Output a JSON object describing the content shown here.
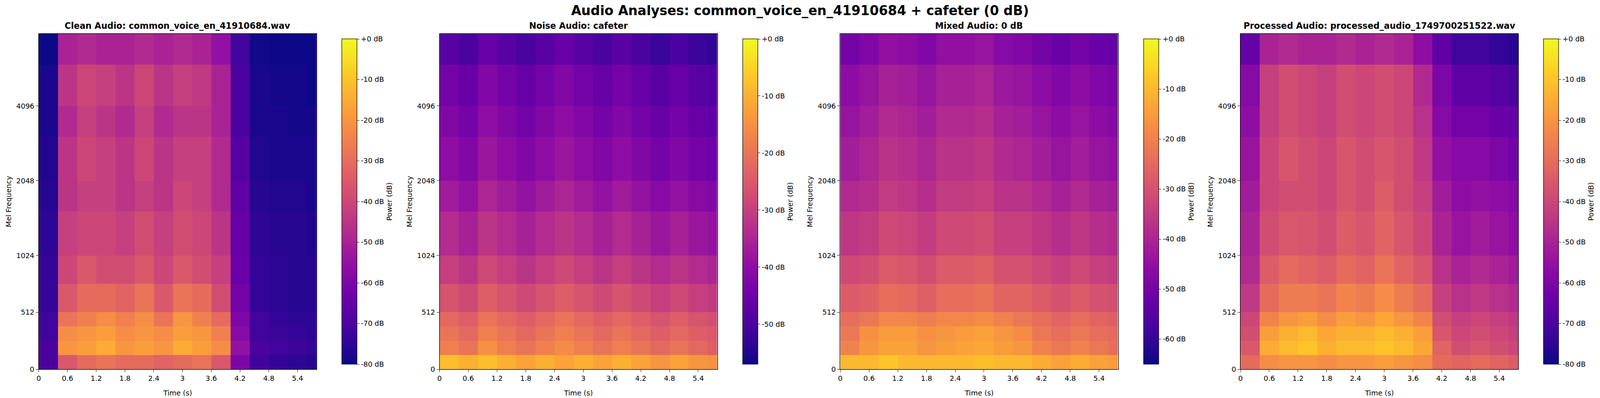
{
  "title": "Audio Analyses: common_voice_en_41910684 + cafeter (0 dB)",
  "chart_data": [
    {
      "type": "heatmap",
      "title": "Clean Audio: common_voice_en_41910684.wav",
      "x_label": "Time (s)",
      "y_label": "Mel Frequency",
      "x_edges": [
        0,
        0.4,
        0.8,
        1.2,
        1.6,
        2.0,
        2.4,
        2.8,
        3.2,
        3.6,
        4.0,
        4.4,
        4.8,
        5.2,
        5.6,
        5.8
      ],
      "y_edges": [
        0,
        128,
        256,
        384,
        512,
        768,
        1024,
        1536,
        2048,
        3072,
        4096,
        6000,
        8000
      ],
      "xlim": [
        0,
        5.8
      ],
      "ylim": [
        0,
        8000
      ],
      "xticks": [
        0,
        0.6,
        1.2,
        1.8,
        2.4,
        3,
        3.6,
        4.2,
        4.8,
        5.4
      ],
      "yticks": [
        0,
        512,
        1024,
        2048,
        4096
      ],
      "colorbar": {
        "label": "Power (dB)",
        "range": [
          -80,
          0
        ],
        "ticks": [
          {
            "value": 0,
            "label": "+0 dB"
          },
          {
            "value": -10,
            "label": "-10 dB"
          },
          {
            "value": -20,
            "label": "-20 dB"
          },
          {
            "value": -30,
            "label": "-30 dB"
          },
          {
            "value": -40,
            "label": "-40 dB"
          },
          {
            "value": -50,
            "label": "-50 dB"
          },
          {
            "value": -60,
            "label": "-60 dB"
          },
          {
            "value": -70,
            "label": "-70 dB"
          },
          {
            "value": -80,
            "label": "-80 dB"
          }
        ]
      },
      "cells": [
        [
          -70,
          -35,
          -30,
          -28,
          -30,
          -30,
          -32,
          -30,
          -28,
          -35,
          -60,
          -72,
          -74,
          -75,
          -76
        ],
        [
          -70,
          -20,
          -18,
          -15,
          -20,
          -18,
          -20,
          -15,
          -18,
          -22,
          -55,
          -70,
          -72,
          -73,
          -74
        ],
        [
          -72,
          -22,
          -20,
          -18,
          -22,
          -20,
          -22,
          -18,
          -20,
          -25,
          -58,
          -72,
          -73,
          -74,
          -75
        ],
        [
          -72,
          -28,
          -25,
          -22,
          -25,
          -22,
          -28,
          -20,
          -25,
          -30,
          -60,
          -72,
          -74,
          -75,
          -75
        ],
        [
          -74,
          -35,
          -30,
          -30,
          -32,
          -28,
          -35,
          -28,
          -30,
          -38,
          -62,
          -74,
          -75,
          -76,
          -76
        ],
        [
          -74,
          -40,
          -35,
          -38,
          -38,
          -35,
          -40,
          -35,
          -38,
          -42,
          -64,
          -74,
          -75,
          -76,
          -76
        ],
        [
          -75,
          -42,
          -40,
          -40,
          -42,
          -38,
          -42,
          -38,
          -40,
          -45,
          -65,
          -75,
          -76,
          -76,
          -77
        ],
        [
          -76,
          -45,
          -42,
          -42,
          -45,
          -42,
          -45,
          -40,
          -42,
          -48,
          -66,
          -76,
          -77,
          -77,
          -78
        ],
        [
          -77,
          -45,
          -40,
          -42,
          -45,
          -40,
          -45,
          -42,
          -42,
          -48,
          -68,
          -77,
          -78,
          -78,
          -78
        ],
        [
          -78,
          -48,
          -42,
          -45,
          -48,
          -42,
          -48,
          -45,
          -45,
          -50,
          -70,
          -78,
          -78,
          -79,
          -79
        ],
        [
          -78,
          -45,
          -40,
          -42,
          -45,
          -40,
          -45,
          -42,
          -44,
          -50,
          -70,
          -78,
          -79,
          -79,
          -80
        ],
        [
          -80,
          -50,
          -48,
          -50,
          -50,
          -48,
          -50,
          -48,
          -50,
          -55,
          -72,
          -79,
          -80,
          -80,
          -80
        ]
      ]
    },
    {
      "type": "heatmap",
      "title": "Noise Audio: cafeter",
      "x_label": "Time (s)",
      "y_label": "Mel Frequency",
      "x_edges": [
        0,
        0.4,
        0.8,
        1.2,
        1.6,
        2.0,
        2.4,
        2.8,
        3.2,
        3.6,
        4.0,
        4.4,
        4.8,
        5.2,
        5.6,
        5.8
      ],
      "y_edges": [
        0,
        128,
        256,
        384,
        512,
        768,
        1024,
        1536,
        2048,
        3072,
        4096,
        6000,
        8000
      ],
      "xlim": [
        0,
        5.8
      ],
      "ylim": [
        0,
        8000
      ],
      "xticks": [
        0,
        0.6,
        1.2,
        1.8,
        2.4,
        3,
        3.6,
        4.2,
        4.8,
        5.4
      ],
      "yticks": [
        0,
        512,
        1024,
        2048,
        4096
      ],
      "colorbar": {
        "label": "Power (dB)",
        "range": [
          -57,
          0
        ],
        "ticks": [
          {
            "value": 0,
            "label": "+0 dB"
          },
          {
            "value": -10,
            "label": "-10 dB"
          },
          {
            "value": -20,
            "label": "-20 dB"
          },
          {
            "value": -30,
            "label": "-30 dB"
          },
          {
            "value": -40,
            "label": "-40 dB"
          },
          {
            "value": -50,
            "label": "-50 dB"
          }
        ]
      },
      "cells": [
        [
          -8,
          -10,
          -8,
          -10,
          -12,
          -10,
          -12,
          -10,
          -12,
          -10,
          -12,
          -14,
          -12,
          -14,
          -15
        ],
        [
          -18,
          -20,
          -15,
          -18,
          -20,
          -18,
          -16,
          -18,
          -20,
          -18,
          -20,
          -22,
          -20,
          -22,
          -24
        ],
        [
          -20,
          -22,
          -18,
          -20,
          -22,
          -20,
          -18,
          -20,
          -22,
          -20,
          -22,
          -24,
          -22,
          -24,
          -25
        ],
        [
          -22,
          -24,
          -20,
          -22,
          -24,
          -22,
          -20,
          -22,
          -24,
          -22,
          -24,
          -26,
          -24,
          -26,
          -27
        ],
        [
          -26,
          -28,
          -24,
          -26,
          -28,
          -26,
          -24,
          -26,
          -28,
          -26,
          -28,
          -30,
          -28,
          -30,
          -31
        ],
        [
          -30,
          -32,
          -28,
          -30,
          -32,
          -30,
          -28,
          -30,
          -32,
          -30,
          -32,
          -34,
          -32,
          -34,
          -35
        ],
        [
          -34,
          -36,
          -32,
          -34,
          -36,
          -34,
          -32,
          -34,
          -36,
          -34,
          -36,
          -38,
          -36,
          -38,
          -39
        ],
        [
          -37,
          -39,
          -35,
          -37,
          -39,
          -37,
          -35,
          -37,
          -39,
          -37,
          -39,
          -41,
          -39,
          -41,
          -42
        ],
        [
          -40,
          -42,
          -38,
          -40,
          -42,
          -40,
          -38,
          -40,
          -42,
          -40,
          -42,
          -44,
          -42,
          -44,
          -45
        ],
        [
          -42,
          -44,
          -40,
          -42,
          -44,
          -42,
          -40,
          -42,
          -44,
          -42,
          -44,
          -46,
          -44,
          -46,
          -47
        ],
        [
          -44,
          -46,
          -42,
          -44,
          -46,
          -44,
          -42,
          -44,
          -46,
          -44,
          -46,
          -48,
          -46,
          -48,
          -49
        ],
        [
          -48,
          -50,
          -46,
          -48,
          -50,
          -48,
          -46,
          -48,
          -50,
          -48,
          -50,
          -52,
          -50,
          -52,
          -53
        ]
      ]
    },
    {
      "type": "heatmap",
      "title": "Mixed Audio: 0 dB",
      "x_label": "Time (s)",
      "y_label": "Mel Frequency",
      "x_edges": [
        0,
        0.4,
        0.8,
        1.2,
        1.6,
        2.0,
        2.4,
        2.8,
        3.2,
        3.6,
        4.0,
        4.4,
        4.8,
        5.2,
        5.6,
        5.8
      ],
      "y_edges": [
        0,
        128,
        256,
        384,
        512,
        768,
        1024,
        1536,
        2048,
        3072,
        4096,
        6000,
        8000
      ],
      "xlim": [
        0,
        5.8
      ],
      "ylim": [
        0,
        8000
      ],
      "xticks": [
        0,
        0.6,
        1.2,
        1.8,
        2.4,
        3,
        3.6,
        4.2,
        4.8,
        5.4
      ],
      "yticks": [
        0,
        512,
        1024,
        2048,
        4096
      ],
      "colorbar": {
        "label": "Power (dB)",
        "range": [
          -65,
          0
        ],
        "ticks": [
          {
            "value": 0,
            "label": "+0 dB"
          },
          {
            "value": -10,
            "label": "-10 dB"
          },
          {
            "value": -20,
            "label": "-20 dB"
          },
          {
            "value": -30,
            "label": "-30 dB"
          },
          {
            "value": -40,
            "label": "-40 dB"
          },
          {
            "value": -50,
            "label": "-50 dB"
          },
          {
            "value": -60,
            "label": "-60 dB"
          }
        ]
      },
      "cells": [
        [
          -10,
          -10,
          -8,
          -10,
          -10,
          -10,
          -10,
          -9,
          -10,
          -10,
          -12,
          -14,
          -12,
          -14,
          -15
        ],
        [
          -20,
          -16,
          -14,
          -14,
          -16,
          -15,
          -14,
          -13,
          -15,
          -16,
          -20,
          -22,
          -20,
          -22,
          -24
        ],
        [
          -22,
          -17,
          -15,
          -15,
          -17,
          -16,
          -15,
          -14,
          -16,
          -18,
          -22,
          -24,
          -22,
          -24,
          -25
        ],
        [
          -24,
          -22,
          -19,
          -19,
          -21,
          -19,
          -19,
          -18,
          -20,
          -22,
          -24,
          -26,
          -24,
          -26,
          -27
        ],
        [
          -28,
          -27,
          -24,
          -25,
          -27,
          -24,
          -24,
          -23,
          -26,
          -26,
          -28,
          -30,
          -28,
          -30,
          -31
        ],
        [
          -32,
          -31,
          -28,
          -29,
          -31,
          -28,
          -28,
          -27,
          -30,
          -30,
          -32,
          -34,
          -32,
          -34,
          -35
        ],
        [
          -36,
          -35,
          -32,
          -33,
          -35,
          -32,
          -32,
          -31,
          -34,
          -34,
          -36,
          -38,
          -36,
          -38,
          -39
        ],
        [
          -39,
          -38,
          -35,
          -36,
          -38,
          -35,
          -35,
          -34,
          -37,
          -37,
          -39,
          -41,
          -39,
          -41,
          -42
        ],
        [
          -42,
          -40,
          -37,
          -38,
          -40,
          -37,
          -37,
          -36,
          -39,
          -40,
          -42,
          -44,
          -42,
          -44,
          -45
        ],
        [
          -44,
          -42,
          -39,
          -40,
          -42,
          -39,
          -39,
          -38,
          -41,
          -42,
          -44,
          -46,
          -44,
          -46,
          -47
        ],
        [
          -46,
          -44,
          -41,
          -42,
          -44,
          -41,
          -41,
          -40,
          -43,
          -44,
          -46,
          -48,
          -46,
          -48,
          -49
        ],
        [
          -50,
          -48,
          -45,
          -46,
          -48,
          -45,
          -45,
          -44,
          -47,
          -48,
          -50,
          -52,
          -50,
          -52,
          -53
        ]
      ]
    },
    {
      "type": "heatmap",
      "title": "Processed Audio: processed_audio_1749700251522.wav",
      "x_label": "Time (s)",
      "y_label": "Mel Frequency",
      "x_edges": [
        0,
        0.4,
        0.8,
        1.2,
        1.6,
        2.0,
        2.4,
        2.8,
        3.2,
        3.6,
        4.0,
        4.4,
        4.8,
        5.2,
        5.6,
        5.8
      ],
      "y_edges": [
        0,
        128,
        256,
        384,
        512,
        768,
        1024,
        1536,
        2048,
        3072,
        4096,
        6000,
        8000
      ],
      "xlim": [
        0,
        5.8
      ],
      "ylim": [
        0,
        8000
      ],
      "xticks": [
        0,
        0.6,
        1.2,
        1.8,
        2.4,
        3,
        3.6,
        4.2,
        4.8,
        5.4
      ],
      "yticks": [
        0,
        512,
        1024,
        2048,
        4096
      ],
      "colorbar": {
        "label": "Power (dB)",
        "range": [
          -80,
          0
        ],
        "ticks": [
          {
            "value": 0,
            "label": "+0 dB"
          },
          {
            "value": -10,
            "label": "-10 dB"
          },
          {
            "value": -20,
            "label": "-20 dB"
          },
          {
            "value": -30,
            "label": "-30 dB"
          },
          {
            "value": -40,
            "label": "-40 dB"
          },
          {
            "value": -50,
            "label": "-50 dB"
          },
          {
            "value": -60,
            "label": "-60 dB"
          },
          {
            "value": -70,
            "label": "-70 dB"
          },
          {
            "value": -80,
            "label": "-80 dB"
          }
        ]
      },
      "cells": [
        [
          -30,
          -22,
          -20,
          -20,
          -22,
          -20,
          -20,
          -18,
          -20,
          -22,
          -30,
          -32,
          -30,
          -32,
          -34
        ],
        [
          -35,
          -15,
          -12,
          -10,
          -14,
          -12,
          -12,
          -10,
          -12,
          -16,
          -32,
          -38,
          -36,
          -38,
          -40
        ],
        [
          -38,
          -18,
          -14,
          -12,
          -16,
          -14,
          -14,
          -12,
          -14,
          -18,
          -36,
          -40,
          -38,
          -40,
          -42
        ],
        [
          -40,
          -24,
          -20,
          -18,
          -22,
          -18,
          -20,
          -16,
          -20,
          -24,
          -38,
          -42,
          -40,
          -42,
          -44
        ],
        [
          -44,
          -30,
          -26,
          -26,
          -28,
          -24,
          -26,
          -22,
          -26,
          -30,
          -42,
          -46,
          -44,
          -46,
          -48
        ],
        [
          -48,
          -34,
          -30,
          -32,
          -34,
          -30,
          -32,
          -28,
          -32,
          -36,
          -46,
          -50,
          -48,
          -50,
          -52
        ],
        [
          -50,
          -38,
          -35,
          -36,
          -38,
          -34,
          -36,
          -32,
          -36,
          -40,
          -50,
          -54,
          -52,
          -54,
          -56
        ],
        [
          -52,
          -40,
          -38,
          -38,
          -40,
          -36,
          -38,
          -34,
          -38,
          -42,
          -52,
          -56,
          -55,
          -56,
          -58
        ],
        [
          -54,
          -40,
          -36,
          -38,
          -40,
          -36,
          -38,
          -36,
          -38,
          -44,
          -55,
          -58,
          -58,
          -60,
          -62
        ],
        [
          -56,
          -42,
          -38,
          -40,
          -42,
          -38,
          -40,
          -38,
          -40,
          -46,
          -58,
          -62,
          -62,
          -64,
          -65
        ],
        [
          -58,
          -42,
          -38,
          -40,
          -42,
          -38,
          -40,
          -38,
          -40,
          -48,
          -60,
          -66,
          -66,
          -68,
          -70
        ],
        [
          -65,
          -50,
          -48,
          -50,
          -50,
          -48,
          -50,
          -48,
          -50,
          -56,
          -66,
          -72,
          -72,
          -74,
          -76
        ]
      ]
    }
  ]
}
